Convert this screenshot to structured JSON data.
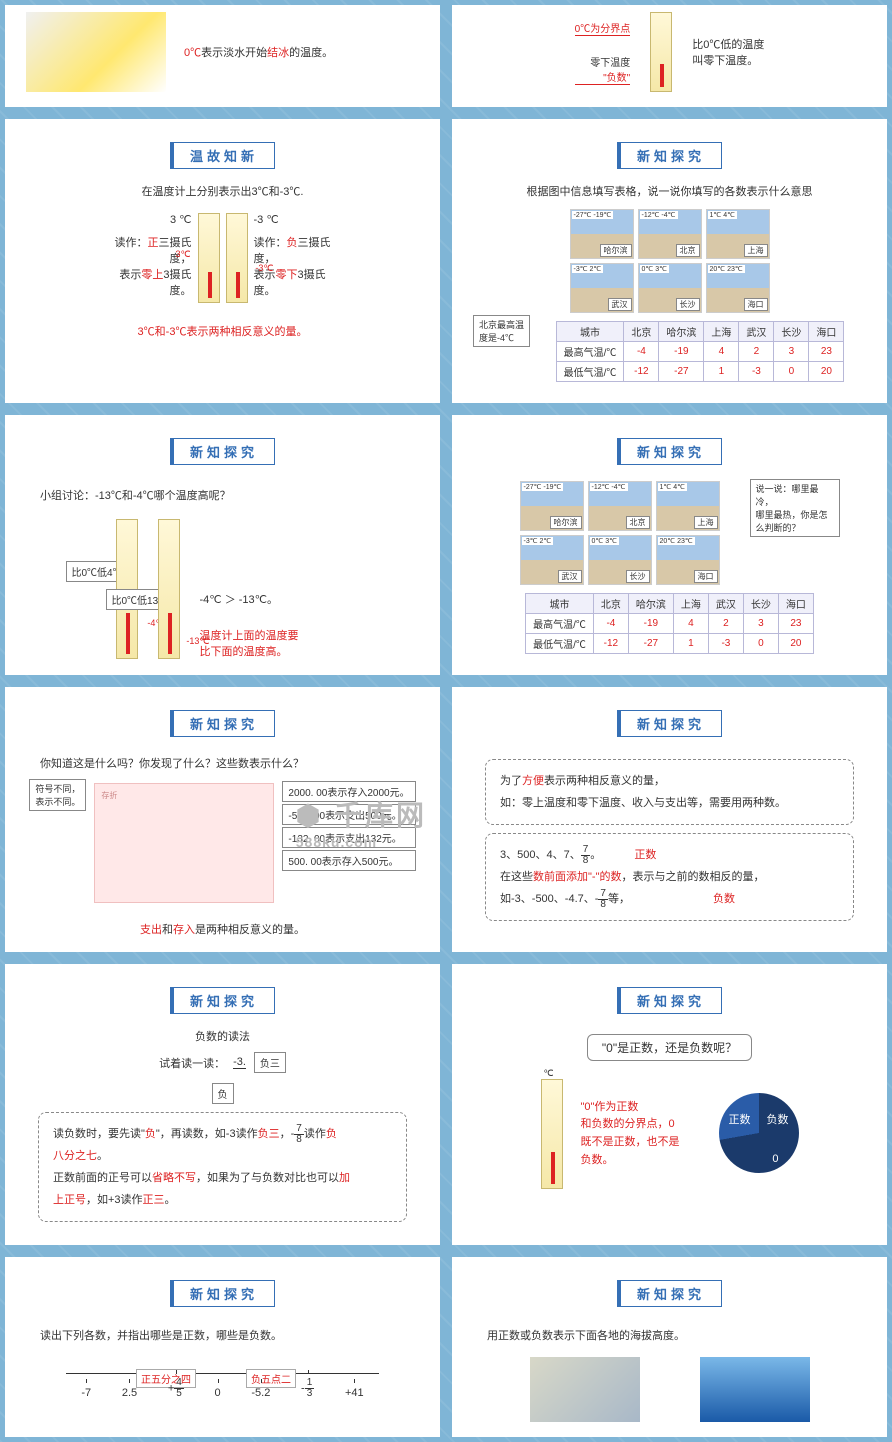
{
  "titles": {
    "review": "温故知新",
    "explore": "新知探究"
  },
  "s1": {
    "text_a": "0℃",
    "text_b": "表示淡水开始",
    "text_c": "结冰",
    "text_d": "的温度。"
  },
  "s2": {
    "divider": "0℃为分界点",
    "below": "零下温度",
    "neg": "\"负数\"",
    "r1": "比0℃低的温度",
    "r2": "叫零下温度。"
  },
  "s3": {
    "intro": "在温度计上分别表示出3℃和-3℃.",
    "left_t": "3 ℃",
    "left_l1a": "读作：",
    "left_l1b": "正",
    "left_l1c": "三摄氏度，",
    "left_l2a": "表示",
    "left_l2b": "零上",
    "left_l2c": "3摄氏度。",
    "right_t": "-3 ℃",
    "right_l1a": "读作：",
    "right_l1b": "负",
    "right_l1c": "三摄氏度，",
    "right_l2a": "表示",
    "right_l2b": "零下",
    "right_l2c": "3摄氏度。",
    "mark3": "3℃",
    "markn3": "-3℃",
    "foot": "3℃和-3℃表示两种相反意义的量。"
  },
  "s4": {
    "intro": "根据图中信息填写表格，说一说你填写的各数表示什么意思",
    "note1": "北京最高温",
    "note2": "度是-4℃",
    "cities": [
      "哈尔滨",
      "北京",
      "上海",
      "武汉",
      "长沙",
      "海口"
    ],
    "temps": [
      "-27℃ -19℃",
      "-12℃ -4℃",
      "1℃ 4℃",
      "-3℃ 2℃",
      "0℃ 3℃",
      "20℃ 23℃"
    ],
    "table": {
      "head": [
        "城市",
        "北京",
        "哈尔滨",
        "上海",
        "武汉",
        "长沙",
        "海口"
      ],
      "r1": [
        "最高气温/℃",
        "-4",
        "-19",
        "4",
        "2",
        "3",
        "23"
      ],
      "r2": [
        "最低气温/℃",
        "-12",
        "-27",
        "1",
        "-3",
        "0",
        "20"
      ]
    }
  },
  "s5": {
    "q": "小组讨论：-13℃和-4℃哪个温度高呢？",
    "c1": "比0℃低4℃",
    "c2": "比0℃低13℃",
    "m1": "-4℃",
    "m2": "-13℃",
    "ans": "-4℃ ＞ -13℃。",
    "tip1": "温度计上面的温度要",
    "tip2": "比下面的温度高。"
  },
  "s6": {
    "cities": [
      "哈尔滨",
      "北京",
      "上海",
      "武汉",
      "长沙",
      "海口"
    ],
    "temps": [
      "-27℃ -19℃",
      "-12℃ -4℃",
      "1℃ 4℃",
      "-3℃ 2℃",
      "0℃ 3℃",
      "20℃ 23℃"
    ],
    "ask1": "说一说：哪里最冷，",
    "ask2": "哪里最热，你是怎",
    "ask3": "么判断的？",
    "table": {
      "head": [
        "城市",
        "北京",
        "哈尔滨",
        "上海",
        "武汉",
        "长沙",
        "海口"
      ],
      "r1": [
        "最高气温/℃",
        "-4",
        "-19",
        "4",
        "2",
        "3",
        "23"
      ],
      "r2": [
        "最低气温/℃",
        "-12",
        "-27",
        "1",
        "-3",
        "0",
        "20"
      ]
    }
  },
  "s7": {
    "q": "你知道这是什么吗？你发现了什么？这些数表示什么？",
    "n1": "符号不同，",
    "n2": "表示不同。",
    "e1": "2000. 00表示存入2000元。",
    "e2": "-500. 00表示支出500元。",
    "e3": "-132. 00表示支出132元。",
    "e4": "500. 00表示存入500元。",
    "foot_a": "支出",
    "foot_b": "和",
    "foot_c": "存入",
    "foot_d": "是两种相反意义的量。",
    "wm1": "千库网",
    "wm2": "588ku.com"
  },
  "s8": {
    "p1a": "为了",
    "p1b": "方便",
    "p1c": "表示两种相反意义的量，",
    "p2": "如：零上温度和零下温度、收入与支出等，需要用两种数。",
    "p3": "3、500、4、7、",
    "pos": "正数",
    "p4a": "在这些",
    "p4b": "数前面添加\"-\"的数",
    "p4c": "，表示与之前的数相反的量，",
    "p5": "如-3、-500、-4.7、-",
    "p5b": "等，",
    "neg": "负数",
    "frac_n": "7",
    "frac_d": "8"
  },
  "s9": {
    "h": "负数的读法",
    "t1": "试着读一读：",
    "num": "-3.",
    "r1": "负三",
    "r2": "负",
    "b1a": "读负数时，要先读\"",
    "b1b": "负",
    "b1c": "\"，再读数，如-3读作",
    "b1d": "负三",
    "b1e": "，-",
    "b1f": "读作",
    "b1g": "负",
    "b2a": "八分之七",
    "b2b": "。",
    "b3a": "正数前面的正号可以",
    "b3b": "省略不写",
    "b3c": "，如果为了与负数对比也可以",
    "b3d": "加",
    "b4a": "上正号",
    "b4b": "，如+3读作",
    "b4c": "正三",
    "b4d": "。",
    "frac_n": "7",
    "frac_d": "8"
  },
  "s10": {
    "q": "\"0\"是正数，还是负数呢？",
    "t1": "\"0\"作为正数",
    "t2": "和负数的分界点，0",
    "t3": "既不是正数，也不是",
    "t4": "负数。",
    "pie_pos": "正数",
    "pie_neg": "负数",
    "pie_zero": "0",
    "tlabel": "℃"
  },
  "s11": {
    "q": "读出下列各数，并指出哪些是正数，哪些是负数。",
    "a1": "正五分之四",
    "a2": "负五点二",
    "nums": [
      "-7",
      "2.5",
      "+",
      "0",
      "-5.2",
      "-",
      "+41"
    ],
    "f1n": "4",
    "f1d": "5",
    "f2n": "1",
    "f2d": "3"
  },
  "s12": {
    "q": "用正数或负数表示下面各地的海拔高度。"
  }
}
